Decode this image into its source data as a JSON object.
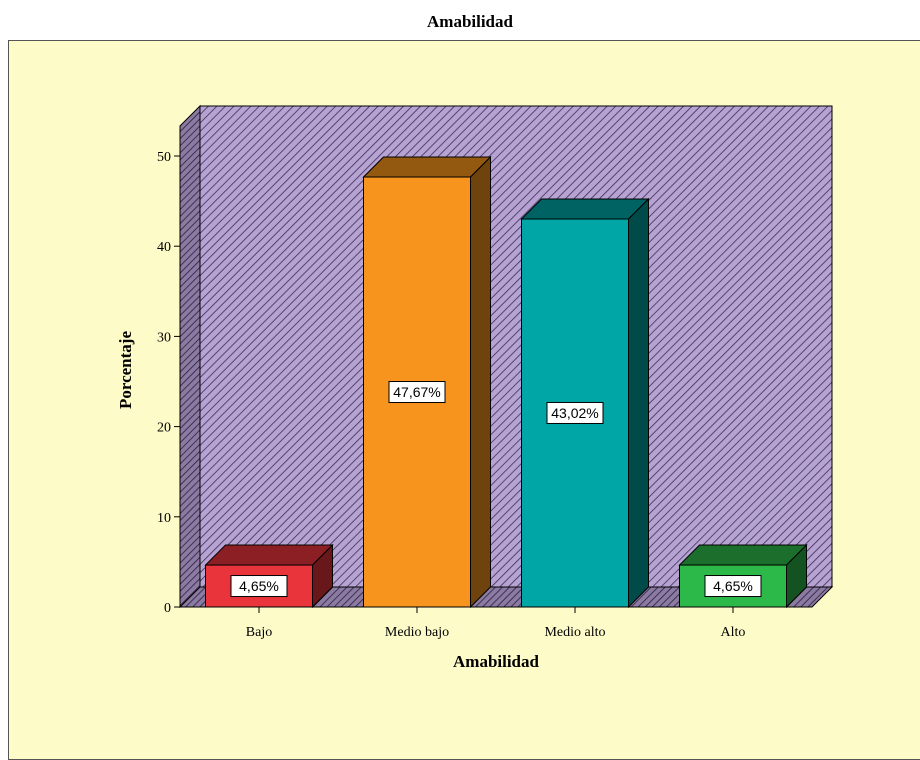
{
  "chart_data": {
    "type": "bar",
    "title": "Amabilidad",
    "xlabel": "Amabilidad",
    "ylabel": "Porcentaje",
    "categories": [
      "Bajo",
      "Medio bajo",
      "Medio alto",
      "Alto"
    ],
    "values": [
      4.65,
      47.67,
      43.02,
      4.65
    ],
    "data_labels": [
      "4,65%",
      "47,67%",
      "43,02%",
      "4,65%"
    ],
    "ylim": [
      0,
      50
    ],
    "yticks": [
      "0",
      "10",
      "20",
      "30",
      "40",
      "50"
    ],
    "colors": [
      "#e8343a",
      "#f7941d",
      "#00a5a5",
      "#2db84a"
    ],
    "background_color": "#fdfbc8",
    "wall_color": "#b7a3d3",
    "grid": false
  }
}
